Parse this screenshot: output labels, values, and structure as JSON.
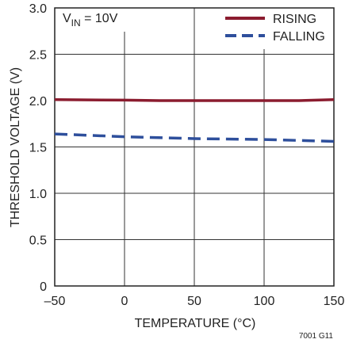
{
  "chart_data": {
    "type": "line",
    "title": "",
    "condition": {
      "prefix": "V",
      "subscript": "IN",
      "suffix": " = 10V"
    },
    "xlabel": "TEMPERATURE (°C)",
    "ylabel": "THRESHOLD VOLTAGE (V)",
    "xlim": [
      -50,
      150
    ],
    "ylim": [
      0,
      3.0
    ],
    "x_ticks": [
      -50,
      0,
      50,
      100,
      150
    ],
    "x_tick_labels": [
      "–50",
      "0",
      "50",
      "100",
      "150"
    ],
    "y_ticks": [
      0,
      0.5,
      1.0,
      1.5,
      2.0,
      2.5,
      3.0
    ],
    "y_tick_labels": [
      "0",
      "0.5",
      "1.0",
      "1.5",
      "2.0",
      "2.5",
      "3.0"
    ],
    "grid": true,
    "legend_position": "top-right",
    "series": [
      {
        "name": "RISING",
        "color": "#8b1c2f",
        "style": "solid",
        "x": [
          -50,
          0,
          25,
          50,
          75,
          100,
          125,
          150
        ],
        "y": [
          2.01,
          2.005,
          2.0,
          2.0,
          2.0,
          2.0,
          2.0,
          2.01
        ]
      },
      {
        "name": "FALLING",
        "color": "#2e4f9c",
        "style": "dashed",
        "x": [
          -50,
          0,
          50,
          100,
          150
        ],
        "y": [
          1.64,
          1.61,
          1.59,
          1.58,
          1.56
        ]
      }
    ],
    "figure_id": "7001 G11"
  }
}
